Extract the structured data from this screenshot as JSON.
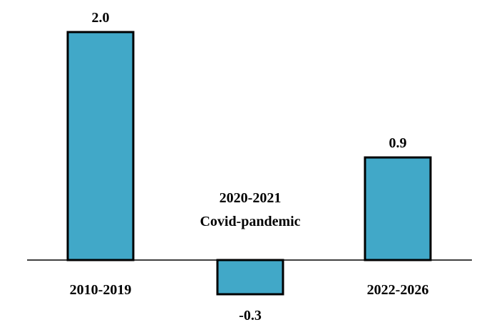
{
  "chart_data": {
    "type": "bar",
    "categories": [
      "2010-2019",
      "2020-2021",
      "2022-2026"
    ],
    "values": [
      2.0,
      -0.3,
      0.9
    ],
    "value_labels": [
      "2.0",
      "-0.3",
      "0.9"
    ],
    "annotation": [
      "2020-2021",
      "Covid-pandemic"
    ],
    "title": "",
    "xlabel": "",
    "ylabel": "",
    "ylim": [
      -0.3,
      2.0
    ],
    "grid": false,
    "legend": "none",
    "bar_color": "#41a8c8",
    "border_color": "#000000"
  }
}
